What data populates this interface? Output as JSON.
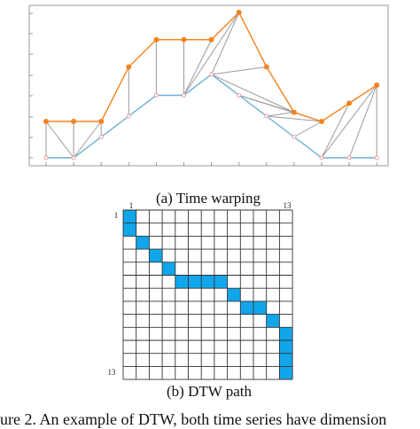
{
  "figure_caption": "ure 2.    An example of DTW, both time series have dimension",
  "panel_a": {
    "caption": "(a) Time warping",
    "upper_series": [
      2,
      2,
      2,
      5,
      6.5,
      6.5,
      6.5,
      8,
      5,
      2.5,
      2,
      3,
      4
    ],
    "lower_series": [
      0,
      0,
      1,
      2,
      3,
      3,
      4,
      3,
      2,
      1,
      0,
      0,
      0
    ],
    "pairs": [
      [
        0,
        0
      ],
      [
        0,
        1
      ],
      [
        1,
        1
      ],
      [
        2,
        1
      ],
      [
        2,
        2
      ],
      [
        3,
        3
      ],
      [
        4,
        4
      ],
      [
        5,
        5
      ],
      [
        6,
        5
      ],
      [
        7,
        5
      ],
      [
        7,
        6
      ],
      [
        8,
        6
      ],
      [
        9,
        6
      ],
      [
        9,
        7
      ],
      [
        9,
        8
      ],
      [
        10,
        9
      ],
      [
        10,
        8
      ],
      [
        10,
        7
      ],
      [
        11,
        10
      ],
      [
        12,
        10
      ],
      [
        12,
        11
      ],
      [
        12,
        12
      ]
    ],
    "colors": {
      "upper": "#f5821f",
      "lower": "#6baed6",
      "link": "#9a9a9a"
    }
  },
  "panel_b": {
    "caption": "(b) DTW path",
    "size": 13,
    "row_label_first": "1",
    "row_label_last": "13",
    "col_label_first": "1",
    "col_label_last": "13",
    "path": [
      [
        0,
        0
      ],
      [
        1,
        0
      ],
      [
        2,
        1
      ],
      [
        3,
        2
      ],
      [
        4,
        3
      ],
      [
        5,
        4
      ],
      [
        5,
        5
      ],
      [
        5,
        6
      ],
      [
        5,
        7
      ],
      [
        6,
        8
      ],
      [
        7,
        9
      ],
      [
        7,
        10
      ],
      [
        8,
        11
      ],
      [
        9,
        12
      ],
      [
        10,
        12
      ],
      [
        11,
        12
      ],
      [
        12,
        12
      ]
    ],
    "fill_color": "#11a6ea"
  }
}
